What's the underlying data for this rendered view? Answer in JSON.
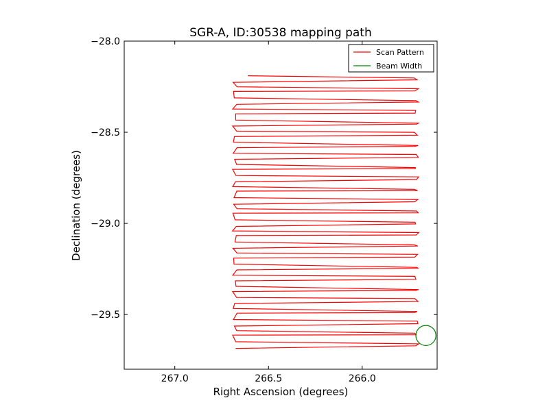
{
  "chart_data": {
    "type": "line",
    "title": "SGR-A, ID:30538 mapping path",
    "xlabel": "Right Ascension (degrees)",
    "ylabel": "Declination (degrees)",
    "xlim": [
      267.27,
      265.6
    ],
    "ylim": [
      -29.8,
      -28.0
    ],
    "x_inverted": true,
    "x_ticks": [
      267.0,
      266.5,
      266.0
    ],
    "x_tick_labels": [
      "267.0",
      "266.5",
      "266.0"
    ],
    "y_ticks": [
      -28.0,
      -28.5,
      -29.0,
      -29.5
    ],
    "y_tick_labels": [
      "−28.0",
      "−28.5",
      "−29.0",
      "−29.5"
    ],
    "grid": false,
    "legend_position": "top-right",
    "series": [
      {
        "name": "Scan Pattern",
        "color": "#ff0000",
        "ra_start": 266.68,
        "ra_end": 265.71,
        "dec_start": -28.19,
        "dec_end": -29.68,
        "passes": 50,
        "pass_spacing": 0.0304
      },
      {
        "name": "Beam Width",
        "color": "#008000",
        "shape": "circle",
        "center_ra": 265.66,
        "center_dec": -29.615,
        "radius_deg": 0.055
      }
    ]
  }
}
